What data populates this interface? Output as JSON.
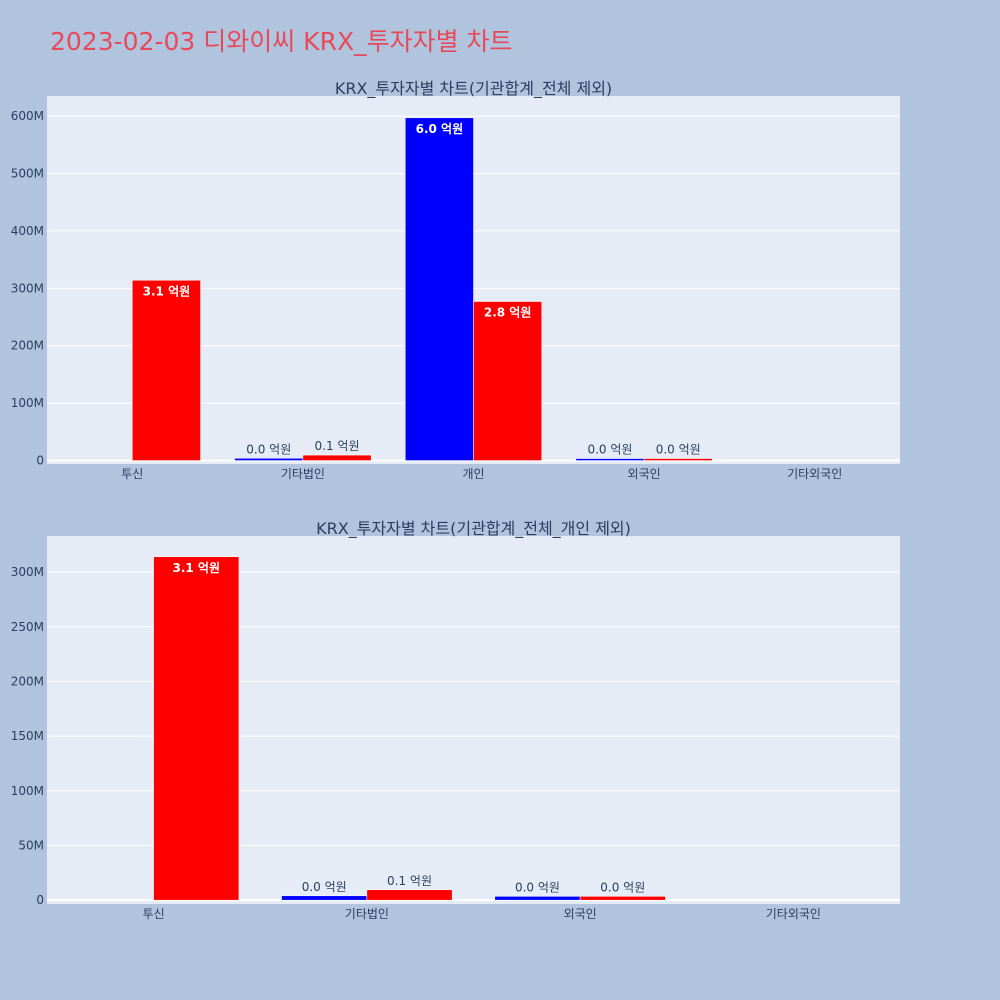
{
  "page": {
    "title": "2023-02-03 디와이씨 KRX_투자자별 차트",
    "background": "#b0c4de",
    "title_color": "#e8495a"
  },
  "chart_data": [
    {
      "type": "bar",
      "title": "KRX_투자자별 차트(기관합계_전체 제외)",
      "categories": [
        "투신",
        "기타법인",
        "개인",
        "외국인",
        "기타외국인"
      ],
      "series": [
        {
          "color": "#0000ff",
          "values": [
            0,
            4000000,
            597000000,
            3500000,
            0
          ],
          "labels": [
            "",
            "0.0 억원",
            "6.0 억원",
            "0.0 억원",
            ""
          ]
        },
        {
          "color": "#ff0000",
          "values": [
            314000000,
            9500000,
            277000000,
            3500000,
            0
          ],
          "labels": [
            "3.1 억원",
            "0.1 억원",
            "2.8 억원",
            "0.0 억원",
            ""
          ]
        }
      ],
      "ylim": [
        -6000000,
        635000000
      ],
      "yticks": [
        0,
        100000000,
        200000000,
        300000000,
        400000000,
        500000000,
        600000000
      ],
      "ytick_labels": [
        "0",
        "100M",
        "200M",
        "300M",
        "400M",
        "500M",
        "600M"
      ],
      "plot_bg": "#e5ecf6",
      "grid": true
    },
    {
      "type": "bar",
      "title": "KRX_투자자별 차트(기관합계_전체_개인 제외)",
      "categories": [
        "투신",
        "기타법인",
        "외국인",
        "기타외국인"
      ],
      "series": [
        {
          "color": "#0000ff",
          "values": [
            0,
            4000000,
            3500000,
            0
          ],
          "labels": [
            "",
            "0.0 억원",
            "0.0 억원",
            ""
          ]
        },
        {
          "color": "#ff0000",
          "values": [
            314000000,
            9500000,
            3500000,
            0
          ],
          "labels": [
            "3.1 억원",
            "0.1 억원",
            "0.0 억원",
            ""
          ]
        }
      ],
      "ylim": [
        -3500000,
        333000000
      ],
      "yticks": [
        0,
        50000000,
        100000000,
        150000000,
        200000000,
        250000000,
        300000000
      ],
      "ytick_labels": [
        "0",
        "50M",
        "100M",
        "150M",
        "200M",
        "250M",
        "300M"
      ],
      "plot_bg": "#e5ecf6",
      "grid": true
    }
  ]
}
